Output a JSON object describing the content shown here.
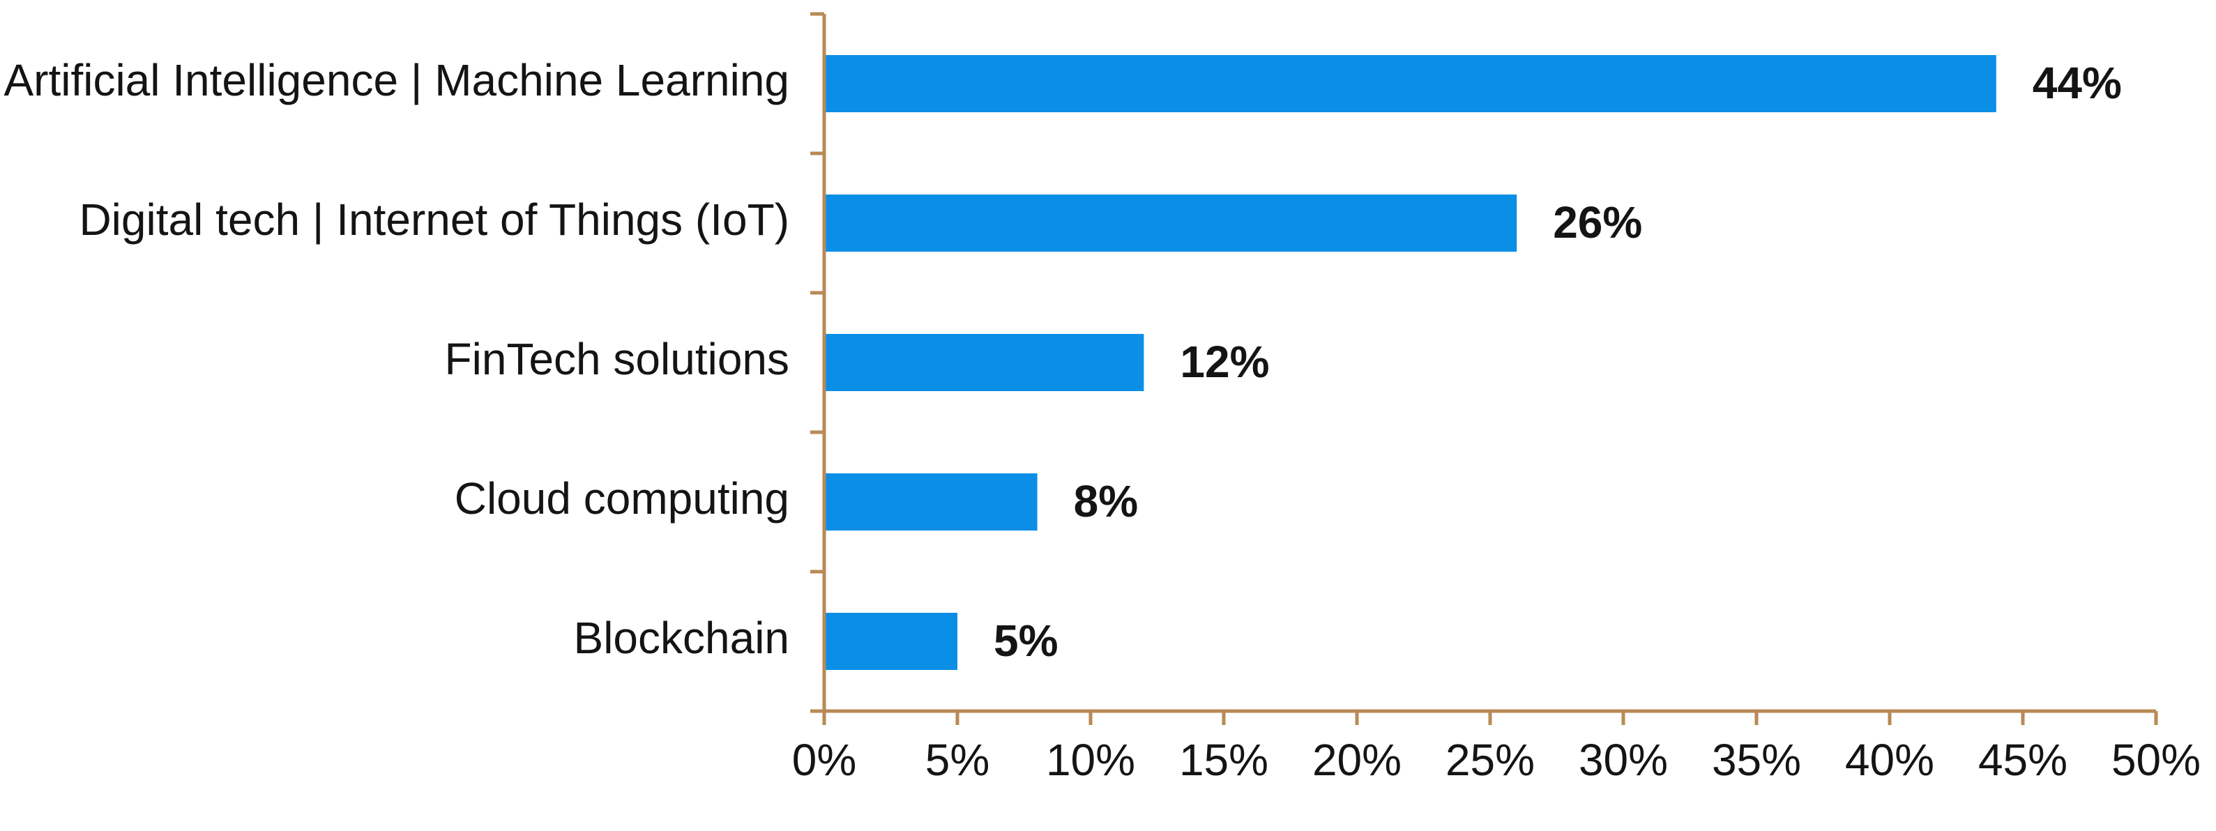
{
  "chart_data": {
    "type": "bar",
    "orientation": "horizontal",
    "categories": [
      "Artificial Intelligence | Machine Learning",
      "Digital tech | Internet of Things (IoT)",
      "FinTech solutions",
      "Cloud computing",
      "Blockchain"
    ],
    "values": [
      44,
      26,
      12,
      8,
      5
    ],
    "data_labels": [
      "44%",
      "26%",
      "12%",
      "8%",
      "5%"
    ],
    "x_ticks": [
      "0%",
      "5%",
      "10%",
      "15%",
      "20%",
      "25%",
      "30%",
      "35%",
      "40%",
      "45%",
      "50%"
    ],
    "xlim": [
      0,
      50
    ],
    "grid": false,
    "legend": "none",
    "title": "",
    "xlabel": "",
    "ylabel": "",
    "colors": {
      "bar": "#0a8ee6",
      "axis": "#b88a55",
      "text": "#141414"
    }
  }
}
